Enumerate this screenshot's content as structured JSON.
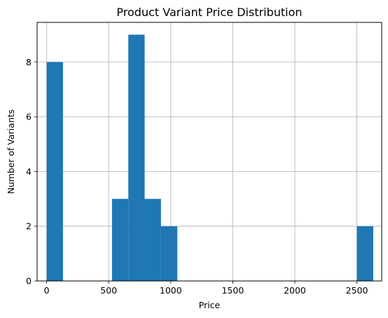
{
  "chart_data": {
    "type": "bar",
    "title": "Product Variant Price Distribution",
    "xlabel": "Price",
    "ylabel": "Number of Variants",
    "grid": true,
    "xlim": [
      -77,
      2700
    ],
    "ylim": [
      0,
      9.45
    ],
    "x_ticks": [
      0,
      500,
      1000,
      1500,
      2000,
      2500
    ],
    "y_ticks": [
      0,
      2,
      4,
      6,
      8
    ],
    "bin_width": 131.6,
    "bins": [
      {
        "x0": 0,
        "x1": 131.6,
        "count": 8
      },
      {
        "x0": 526.4,
        "x1": 658.0,
        "count": 3
      },
      {
        "x0": 658.0,
        "x1": 789.6,
        "count": 9
      },
      {
        "x0": 789.6,
        "x1": 921.2,
        "count": 3
      },
      {
        "x0": 921.2,
        "x1": 1052.8,
        "count": 2
      },
      {
        "x0": 2500.4,
        "x1": 2632.0,
        "count": 2
      }
    ],
    "bar_color": "#1f77b4"
  }
}
